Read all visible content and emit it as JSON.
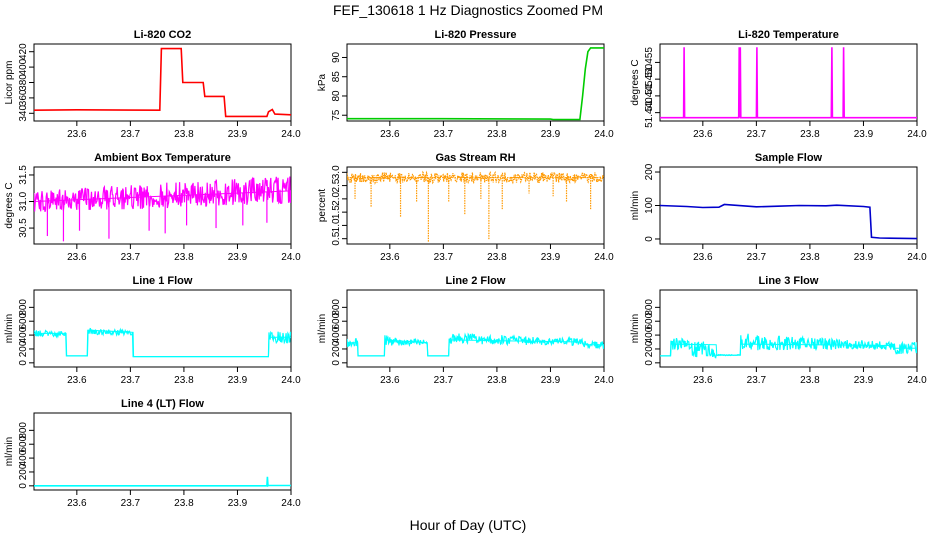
{
  "figure": {
    "title": "FEF_130618  1 Hz Diagnostics Zoomed PM",
    "xlabel": "Hour of Day (UTC)"
  },
  "chart_data": [
    {
      "type": "line",
      "title": "Li-820 CO2",
      "ylabel": "Licor ppm",
      "color": "#ff0000",
      "xlim": [
        23.52,
        24.0
      ],
      "ylim": [
        330,
        430
      ],
      "xticks": [
        23.6,
        23.7,
        23.8,
        23.9,
        24.0
      ],
      "xticklabels": [
        "23.6",
        "23.7",
        "23.8",
        "23.9",
        "24.0"
      ],
      "yticks": [
        340,
        360,
        380,
        400,
        420
      ],
      "yticklabels": [
        "340",
        "360",
        "380",
        "400",
        "420"
      ],
      "series": [
        {
          "x": [
            23.52,
            23.6,
            23.755,
            23.758,
            23.795,
            23.798,
            23.836,
            23.839,
            23.875,
            23.878,
            23.955,
            23.958,
            23.965,
            23.97,
            24.0
          ],
          "y": [
            344,
            344.5,
            344,
            424,
            424,
            380,
            380,
            362,
            362,
            336,
            336,
            342,
            345,
            339,
            338
          ]
        }
      ]
    },
    {
      "type": "line",
      "title": "Li-820 Pressure",
      "ylabel": "kPa",
      "color": "#00cc00",
      "xlim": [
        23.52,
        24.0
      ],
      "ylim": [
        73.5,
        93.5
      ],
      "xticks": [
        23.6,
        23.7,
        23.8,
        23.9,
        24.0
      ],
      "xticklabels": [
        "23.6",
        "23.7",
        "23.8",
        "23.9",
        "24.0"
      ],
      "yticks": [
        75,
        80,
        85,
        90
      ],
      "yticklabels": [
        "75",
        "80",
        "85",
        "90"
      ],
      "series": [
        {
          "x": [
            23.52,
            23.7,
            23.9,
            23.905,
            23.955,
            23.96,
            23.965,
            23.97,
            23.975,
            24.0
          ],
          "y": [
            74.1,
            74.1,
            74.0,
            73.9,
            73.9,
            80,
            87,
            91.5,
            92.5,
            92.5
          ]
        }
      ]
    },
    {
      "type": "line",
      "title": "Li-820 Temperature",
      "ylabel": "degrees C",
      "color": "#ff00ff",
      "xlim": [
        23.52,
        24.0
      ],
      "ylim": [
        51.4375,
        51.4605
      ],
      "xticks": [
        23.6,
        23.7,
        23.8,
        23.9,
        24.0
      ],
      "xticklabels": [
        "23.6",
        "23.7",
        "23.8",
        "23.9",
        "24.0"
      ],
      "yticks": [
        51.44,
        51.445,
        51.45,
        51.455
      ],
      "yticklabels": [
        "51.440",
        "51.445",
        "51.450",
        "51.455"
      ],
      "series": [
        {
          "x": [
            23.52,
            23.564,
            23.565,
            23.566,
            23.667,
            23.668,
            23.669,
            23.67,
            23.671,
            23.672,
            23.7,
            23.701,
            23.702,
            23.84,
            23.841,
            23.842,
            23.862,
            23.863,
            23.864,
            24.0
          ],
          "y": [
            51.4385,
            51.4385,
            51.4595,
            51.4385,
            51.4385,
            51.4595,
            51.4385,
            51.4595,
            51.4385,
            51.4385,
            51.4385,
            51.4595,
            51.4385,
            51.4385,
            51.4595,
            51.4385,
            51.4385,
            51.4595,
            51.4385,
            51.4385
          ]
        }
      ]
    },
    {
      "type": "line",
      "title": "Ambient Box Temperature",
      "ylabel": "degrees C",
      "color": "#ff00ff",
      "xlim": [
        23.52,
        24.0
      ],
      "ylim": [
        30.2,
        31.65
      ],
      "xticks": [
        23.6,
        23.7,
        23.8,
        23.9,
        24.0
      ],
      "xticklabels": [
        "23.6",
        "23.7",
        "23.8",
        "23.9",
        "24.0"
      ],
      "yticks": [
        30.5,
        31.0,
        31.5
      ],
      "yticklabels": [
        "30.5",
        "31.0",
        "31.5"
      ],
      "band": {
        "x": [
          23.52,
          24.0
        ],
        "ymin": [
          30.8,
          30.95
        ],
        "ymax": [
          31.2,
          31.5
        ]
      },
      "spikes": [
        {
          "x": 23.545,
          "y": 30.35
        },
        {
          "x": 23.575,
          "y": 30.25
        },
        {
          "x": 23.605,
          "y": 30.45
        },
        {
          "x": 23.66,
          "y": 30.3
        },
        {
          "x": 23.735,
          "y": 30.45
        },
        {
          "x": 23.765,
          "y": 30.4
        },
        {
          "x": 23.805,
          "y": 30.55
        },
        {
          "x": 23.86,
          "y": 30.5
        },
        {
          "x": 23.91,
          "y": 30.55
        },
        {
          "x": 23.955,
          "y": 30.6
        }
      ],
      "series": [
        {
          "x": [
            23.52,
            24.0
          ],
          "y": [
            31.0,
            31.2
          ]
        }
      ]
    },
    {
      "type": "line",
      "title": "Gas Stream RH",
      "ylabel": "percent",
      "color": "#ff9900",
      "xlim": [
        23.52,
        24.0
      ],
      "ylim": [
        0.3,
        3.2
      ],
      "xticks": [
        23.6,
        23.7,
        23.8,
        23.9,
        24.0
      ],
      "xticklabels": [
        "23.6",
        "23.7",
        "23.8",
        "23.9",
        "24.0"
      ],
      "yticks": [
        0.5,
        1.0,
        1.5,
        2.0,
        2.5,
        3.0
      ],
      "yticklabels": [
        "0.5",
        "1.0",
        "1.5",
        "2.0",
        "2.5",
        "3.0"
      ],
      "band": {
        "x": [
          23.52,
          24.0
        ],
        "ymin": [
          2.6,
          2.6
        ],
        "ymax": [
          3.0,
          3.0
        ]
      },
      "spikes": [
        {
          "x": 23.535,
          "y": 2.0
        },
        {
          "x": 23.565,
          "y": 1.7
        },
        {
          "x": 23.62,
          "y": 1.3
        },
        {
          "x": 23.65,
          "y": 1.9
        },
        {
          "x": 23.672,
          "y": 0.35
        },
        {
          "x": 23.71,
          "y": 1.9
        },
        {
          "x": 23.74,
          "y": 1.4
        },
        {
          "x": 23.77,
          "y": 2.0
        },
        {
          "x": 23.785,
          "y": 0.45
        },
        {
          "x": 23.81,
          "y": 1.6
        },
        {
          "x": 23.86,
          "y": 2.2
        },
        {
          "x": 23.905,
          "y": 2.1
        },
        {
          "x": 23.93,
          "y": 1.9
        },
        {
          "x": 23.975,
          "y": 1.6
        }
      ],
      "series": [
        {
          "x": [
            23.52,
            24.0
          ],
          "y": [
            2.8,
            2.8
          ]
        }
      ]
    },
    {
      "type": "line",
      "title": "Sample Flow",
      "ylabel": "ml/min",
      "color": "#0000cc",
      "xlim": [
        23.52,
        24.0
      ],
      "ylim": [
        -15,
        215
      ],
      "xticks": [
        23.6,
        23.7,
        23.8,
        23.9,
        24.0
      ],
      "xticklabels": [
        "23.6",
        "23.7",
        "23.8",
        "23.9",
        "24.0"
      ],
      "yticks": [
        0,
        100,
        200
      ],
      "yticklabels": [
        "0",
        "100",
        "200"
      ],
      "series": [
        {
          "x": [
            23.52,
            23.57,
            23.6,
            23.63,
            23.64,
            23.7,
            23.74,
            23.78,
            23.83,
            23.85,
            23.9,
            23.912,
            23.915,
            23.93,
            24.0
          ],
          "y": [
            100,
            97,
            94,
            95,
            103,
            96,
            98,
            100,
            99,
            101,
            97,
            95,
            5,
            3,
            1
          ]
        }
      ]
    },
    {
      "type": "line",
      "title": "Line 1 Flow",
      "ylabel": "ml/min",
      "color": "#00ffff",
      "xlim": [
        23.52,
        24.0
      ],
      "ylim": [
        -60,
        1050
      ],
      "xticks": [
        23.6,
        23.7,
        23.8,
        23.9,
        24.0
      ],
      "xticklabels": [
        "23.6",
        "23.7",
        "23.8",
        "23.9",
        "24.0"
      ],
      "yticks": [
        0,
        200,
        400,
        600,
        800
      ],
      "yticklabels": [
        "0",
        "200",
        "400",
        "600",
        "800"
      ],
      "band": {
        "x": [
          23.52,
          23.58,
          23.58,
          23.6,
          23.6,
          23.62,
          23.62,
          23.627,
          23.627,
          23.705,
          23.705,
          23.958,
          23.958,
          24.0
        ],
        "ymin": [
          380,
          380,
          100,
          100,
          100,
          100,
          420,
          420,
          400,
          400,
          90,
          90,
          290,
          290
        ],
        "ymax": [
          470,
          470,
          100,
          100,
          100,
          100,
          540,
          540,
          480,
          480,
          90,
          90,
          450,
          450
        ]
      },
      "series": [
        {
          "x": [
            23.52,
            23.58,
            23.581,
            23.62,
            23.621,
            23.705,
            23.706,
            23.958,
            23.959,
            24.0
          ],
          "y": [
            425,
            425,
            100,
            100,
            470,
            440,
            90,
            90,
            370,
            370
          ]
        }
      ]
    },
    {
      "type": "line",
      "title": "Line 2 Flow",
      "ylabel": "ml/min",
      "color": "#00ffff",
      "xlim": [
        23.52,
        24.0
      ],
      "ylim": [
        -60,
        1050
      ],
      "xticks": [
        23.6,
        23.7,
        23.8,
        23.9,
        24.0
      ],
      "xticklabels": [
        "23.6",
        "23.7",
        "23.8",
        "23.9",
        "24.0"
      ],
      "yticks": [
        0,
        200,
        400,
        600,
        800
      ],
      "yticklabels": [
        "0",
        "200",
        "400",
        "600",
        "800"
      ],
      "band": {
        "x": [
          23.52,
          23.54,
          23.54,
          23.59,
          23.59,
          23.67,
          23.67,
          23.71,
          23.71,
          23.96,
          23.96,
          24.0
        ],
        "ymin": [
          230,
          230,
          100,
          100,
          250,
          250,
          100,
          100,
          270,
          250,
          200,
          200
        ],
        "ymax": [
          350,
          350,
          100,
          100,
          400,
          330,
          100,
          100,
          430,
          350,
          320,
          320
        ]
      },
      "series": [
        {
          "x": [
            23.52,
            23.54,
            23.541,
            23.59,
            23.591,
            23.67,
            23.671,
            23.71,
            23.711,
            23.96,
            23.961,
            24.0
          ],
          "y": [
            290,
            290,
            100,
            100,
            330,
            290,
            100,
            100,
            330,
            300,
            260,
            260
          ]
        }
      ]
    },
    {
      "type": "line",
      "title": "Line 3 Flow",
      "ylabel": "ml/min",
      "color": "#00ffff",
      "xlim": [
        23.52,
        24.0
      ],
      "ylim": [
        -60,
        1050
      ],
      "xticks": [
        23.6,
        23.7,
        23.8,
        23.9,
        24.0
      ],
      "xticklabels": [
        "23.6",
        "23.7",
        "23.8",
        "23.9",
        "24.0"
      ],
      "yticks": [
        0,
        200,
        400,
        600,
        800
      ],
      "yticklabels": [
        "0",
        "200",
        "400",
        "600",
        "800"
      ],
      "band": {
        "x": [
          23.52,
          23.54,
          23.54,
          23.58,
          23.58,
          23.625,
          23.625,
          23.67,
          23.67,
          23.955,
          23.955,
          24.0
        ],
        "ymin": [
          100,
          100,
          170,
          200,
          30,
          60,
          100,
          110,
          180,
          190,
          120,
          130
        ],
        "ymax": [
          100,
          100,
          400,
          330,
          330,
          330,
          120,
          120,
          430,
          300,
          280,
          300
        ]
      },
      "series": [
        {
          "x": [
            23.52,
            23.54,
            23.541,
            23.625,
            23.626,
            23.67,
            23.671,
            23.955,
            23.956,
            24.0
          ],
          "y": [
            100,
            100,
            270,
            260,
            110,
            110,
            270,
            250,
            210,
            210
          ]
        }
      ]
    },
    {
      "type": "line",
      "title": "Line 4 (LT) Flow",
      "ylabel": "ml/min",
      "color": "#00ffff",
      "xlim": [
        23.52,
        24.0
      ],
      "ylim": [
        -60,
        1050
      ],
      "xticks": [
        23.6,
        23.7,
        23.8,
        23.9,
        24.0
      ],
      "xticklabels": [
        "23.6",
        "23.7",
        "23.8",
        "23.9",
        "24.0"
      ],
      "yticks": [
        0,
        200,
        400,
        600,
        800
      ],
      "yticklabels": [
        "0",
        "200",
        "400",
        "600",
        "800"
      ],
      "series": [
        {
          "x": [
            23.52,
            23.955,
            23.956,
            23.957,
            23.958,
            24.0
          ],
          "y": [
            0,
            0,
            130,
            0,
            5,
            5
          ]
        }
      ]
    }
  ]
}
